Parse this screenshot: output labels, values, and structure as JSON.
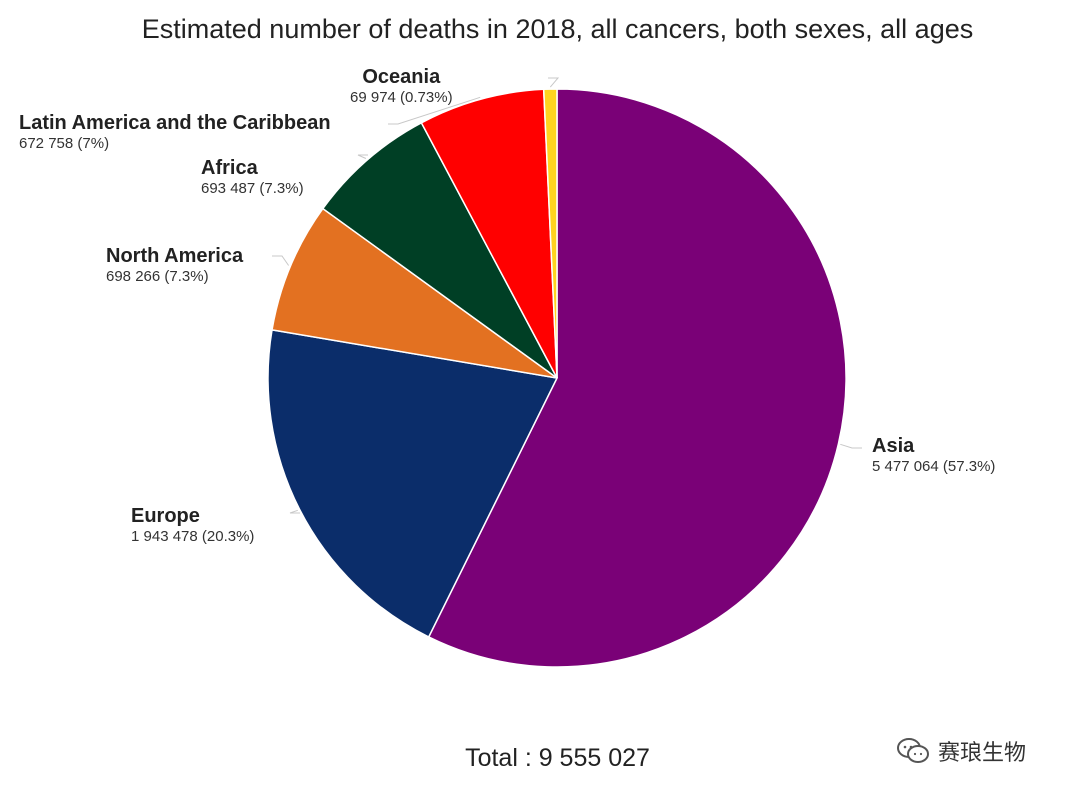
{
  "chart_data": {
    "type": "pie",
    "title": "Estimated number of deaths in 2018, all cancers, both sexes, all ages",
    "total_label": "Total : 9 555 027",
    "slices": [
      {
        "name": "Asia",
        "value": 5477064,
        "value_label": "5 477 064 (57.3%)",
        "color": "#7a0177"
      },
      {
        "name": "Europe",
        "value": 1943478,
        "value_label": "1 943 478 (20.3%)",
        "color": "#0b2d6a"
      },
      {
        "name": "North America",
        "value": 698266,
        "value_label": "698 266 (7.3%)",
        "color": "#e37121"
      },
      {
        "name": "Africa",
        "value": 693487,
        "value_label": "693 487 (7.3%)",
        "color": "#003f25"
      },
      {
        "name": "Latin America and the Caribbean",
        "value": 672758,
        "value_label": "672 758 (7%)",
        "color": "#ff0000"
      },
      {
        "name": "Oceania",
        "value": 69974,
        "value_label": "69 974 (0.73%)",
        "color": "#ffd21f"
      }
    ]
  },
  "watermark": {
    "text": "赛琅生物",
    "icon": "chat-bubbles-icon"
  }
}
